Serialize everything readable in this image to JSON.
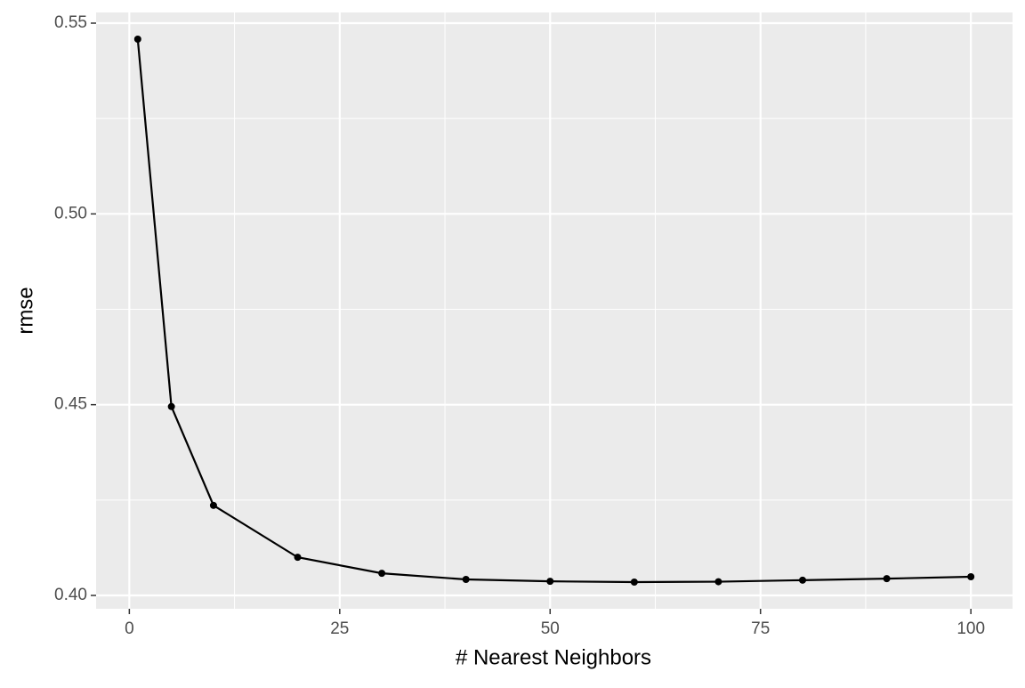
{
  "chart_data": {
    "type": "line",
    "x_label": "# Nearest Neighbors",
    "y_label": "rmse",
    "x": [
      1,
      5,
      10,
      20,
      30,
      40,
      50,
      60,
      70,
      80,
      90,
      100
    ],
    "series": [
      {
        "color": "#000000",
        "values": [
          0.5458,
          0.4495,
          0.4236,
          0.41,
          0.4058,
          0.4042,
          0.4037,
          0.4035,
          0.4036,
          0.404,
          0.4044,
          0.4049
        ]
      }
    ],
    "xlim": [
      -3.95,
      104.95
    ],
    "xticks": [
      0,
      25,
      50,
      75,
      100
    ],
    "xminorticks": [
      12.5,
      37.5,
      62.5,
      87.5
    ],
    "ylim": [
      0.3965,
      0.5528
    ],
    "yticks": [
      {
        "value": 0.4,
        "label": "0.40"
      },
      0.45,
      {
        "value": 0.5,
        "label": "0.50"
      },
      0.55
    ],
    "yminorticks": [
      0.425,
      0.475,
      0.525
    ],
    "grid": true,
    "panel_color": "#EBEBEB",
    "markers": true
  }
}
